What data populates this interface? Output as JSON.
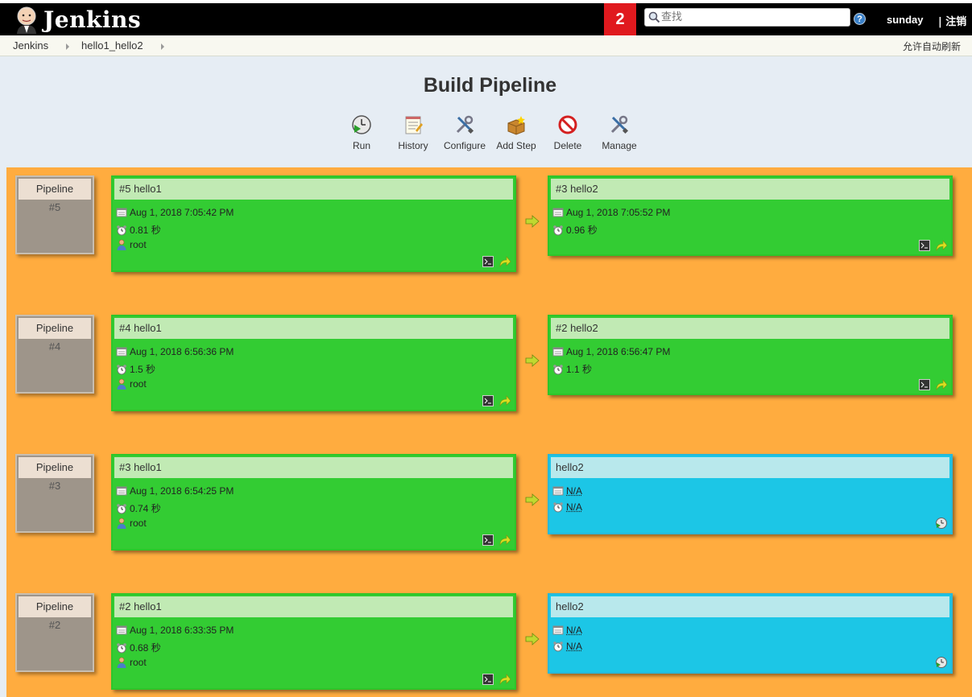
{
  "header": {
    "logo_text": "Jenkins",
    "badge_count": "2",
    "search_placeholder": "查找",
    "help_label": "?",
    "user": "sunday",
    "logout": "| 注销"
  },
  "breadcrumb": {
    "items": [
      "Jenkins",
      "hello1_hello2"
    ],
    "autorefresh": "允许自动刷新"
  },
  "page_title": "Build Pipeline",
  "toolbar": {
    "run": "Run",
    "history": "History",
    "configure": "Configure",
    "add_step": "Add Step",
    "delete": "Delete",
    "manage": "Manage"
  },
  "colors": {
    "success": "#33cc33",
    "pending": "#1cc6e6",
    "board": "#ffac3f",
    "badge": "#e0191e"
  },
  "pipelines": [
    {
      "label": "Pipeline",
      "number": "#5",
      "first": {
        "title": "#5 hello1",
        "date": "Aug 1, 2018 7:05:42 PM",
        "duration": "0.81 秒",
        "user": "root"
      },
      "second": {
        "title": "#3 hello2",
        "date": "Aug 1, 2018 7:05:52 PM",
        "duration": "0.96 秒"
      }
    },
    {
      "label": "Pipeline",
      "number": "#4",
      "first": {
        "title": "#4 hello1",
        "date": "Aug 1, 2018 6:56:36 PM",
        "duration": "1.5 秒",
        "user": "root"
      },
      "second": {
        "title": "#2 hello2",
        "date": "Aug 1, 2018 6:56:47 PM",
        "duration": "1.1 秒"
      }
    },
    {
      "label": "Pipeline",
      "number": "#3",
      "first": {
        "title": "#3 hello1",
        "date": "Aug 1, 2018 6:54:25 PM",
        "duration": "0.74 秒",
        "user": "root"
      },
      "second": {
        "title": "hello2",
        "date": "N/A",
        "duration": "N/A"
      }
    },
    {
      "label": "Pipeline",
      "number": "#2",
      "first": {
        "title": "#2 hello1",
        "date": "Aug 1, 2018 6:33:35 PM",
        "duration": "0.68 秒",
        "user": "root"
      },
      "second": {
        "title": "hello2",
        "date": "N/A",
        "duration": "N/A"
      }
    }
  ]
}
